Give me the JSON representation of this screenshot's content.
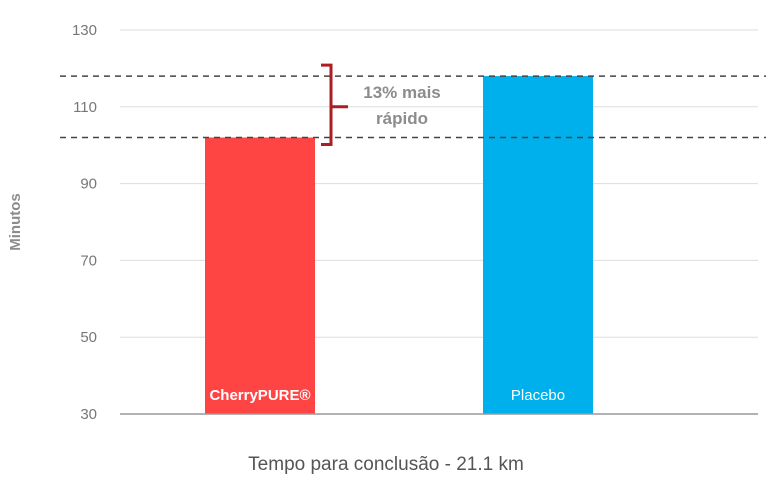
{
  "chart_data": {
    "type": "bar",
    "categories": [
      "CherryPURE®",
      "Placebo"
    ],
    "values": [
      102,
      118
    ],
    "colors": [
      "#ff4444",
      "#00b0ec"
    ],
    "xlabel": "Tempo para conclusão - 21.1 km",
    "ylabel": "Minutos",
    "ylim": [
      30,
      130
    ],
    "yticks": [
      30,
      50,
      70,
      90,
      110,
      130
    ],
    "grid": true,
    "reference_lines": [
      102,
      118
    ],
    "annotation": {
      "line1": "13% mais",
      "line2": "rápido",
      "color": "#aa1f24"
    }
  }
}
